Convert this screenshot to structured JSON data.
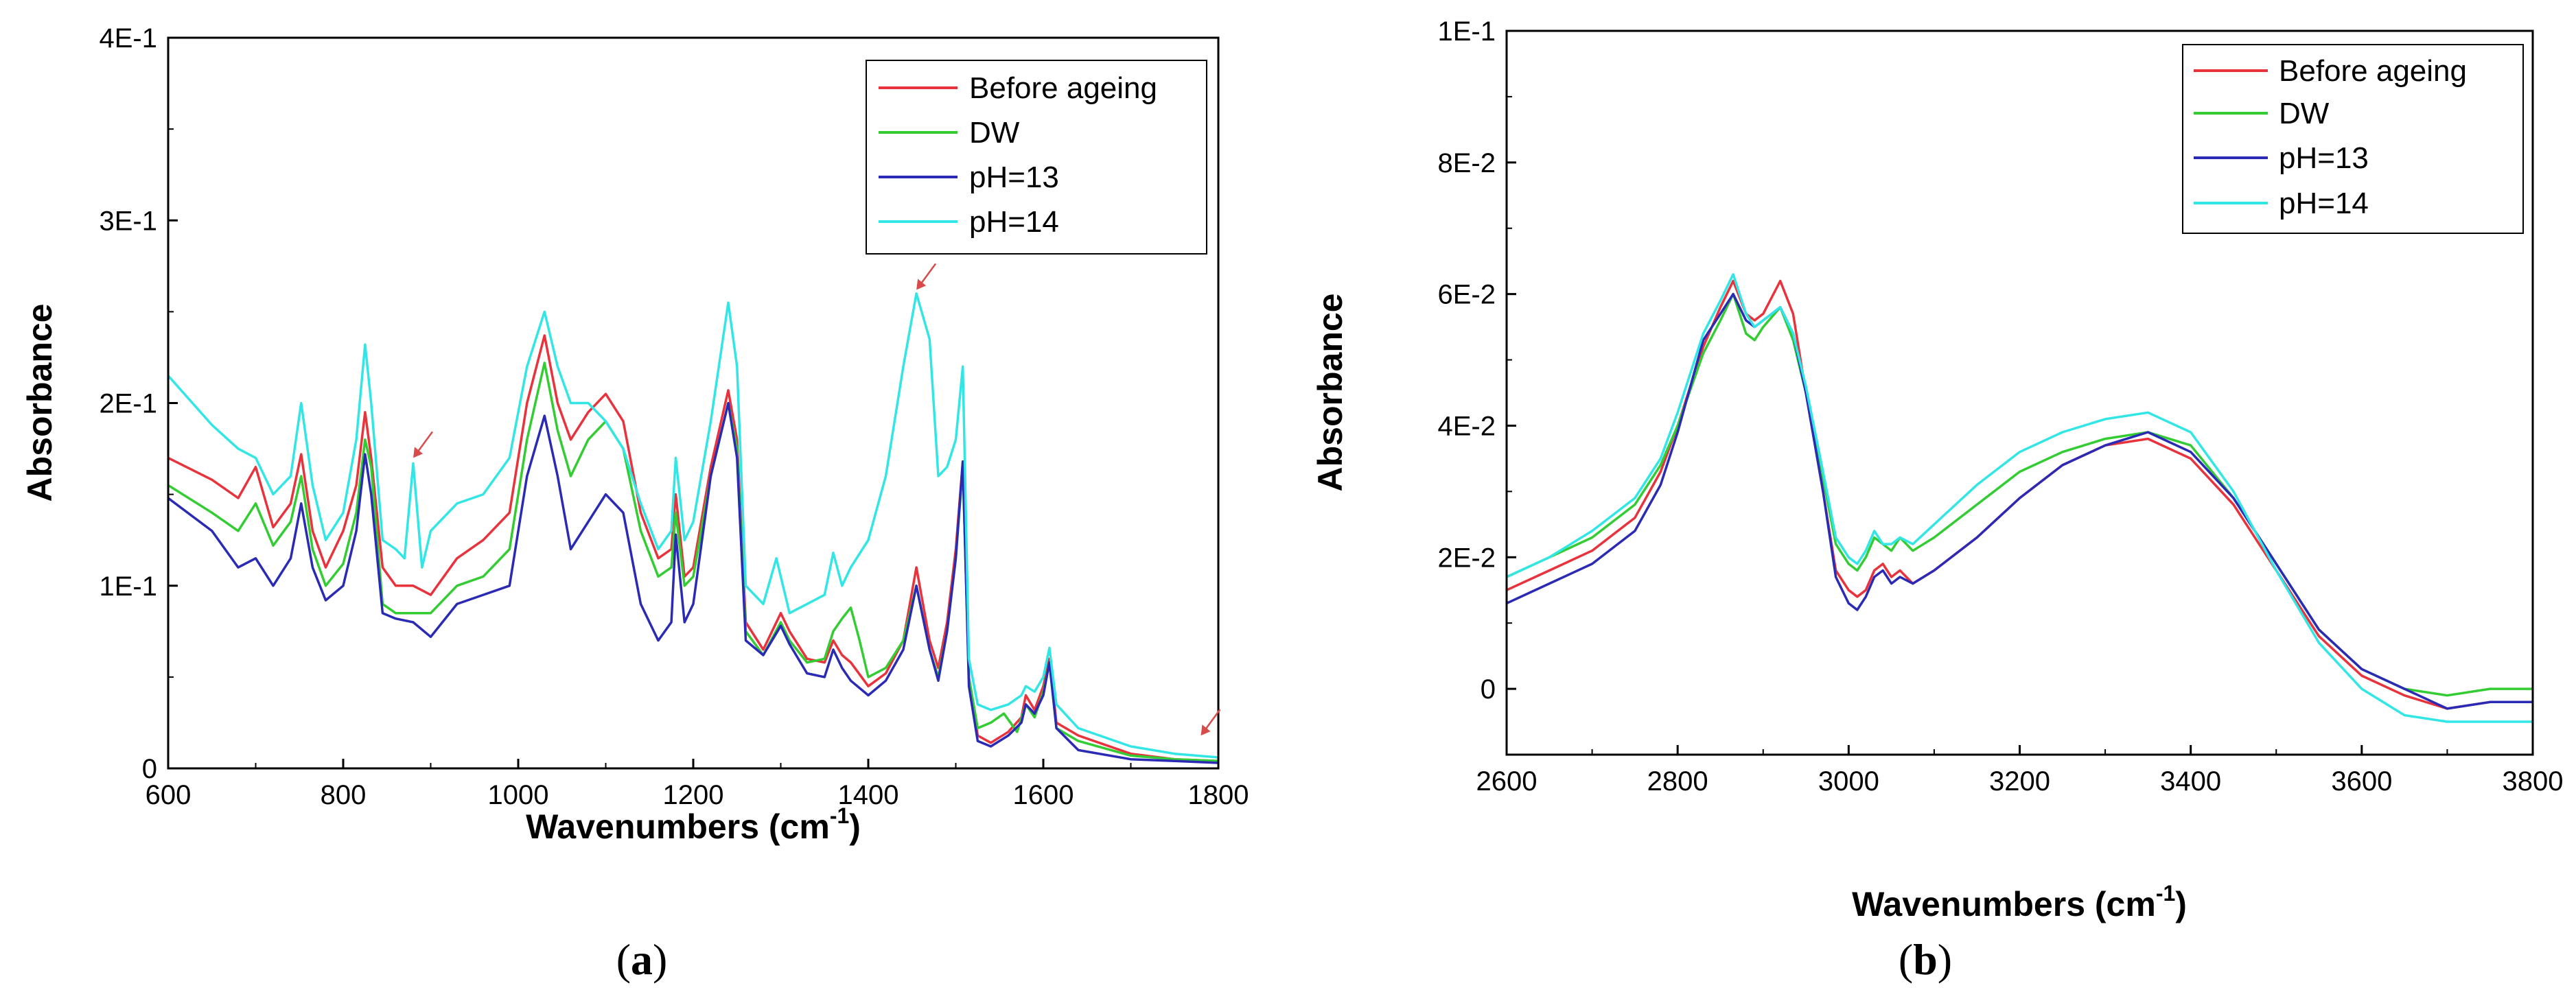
{
  "chart_data": [
    {
      "type": "line",
      "panel_label": "a",
      "xlabel": "Wavenumbers (cm",
      "xlabel_sup": "-1",
      "xlabel_close": ")",
      "ylabel": "Absorbance",
      "xlim": [
        600,
        1800
      ],
      "ylim": [
        0,
        0.4
      ],
      "x_ticks": [
        600,
        800,
        1000,
        1200,
        1400,
        1600,
        1800
      ],
      "y_ticks": [
        {
          "value": 0,
          "label": "0"
        },
        {
          "value": 0.1,
          "label": "1E-1"
        },
        {
          "value": 0.2,
          "label": "2E-1"
        },
        {
          "value": 0.3,
          "label": "3E-1"
        },
        {
          "value": 0.4,
          "label": "4E-1"
        }
      ],
      "legend_position": "top-right",
      "annotations": [
        {
          "type": "arrow",
          "x": 880,
          "y": 0.17,
          "color": "#d94a4a"
        },
        {
          "type": "arrow",
          "x": 1455,
          "y": 0.262,
          "color": "#d94a4a"
        },
        {
          "type": "arrow",
          "x": 1780,
          "y": 0.018,
          "color": "#d94a4a"
        }
      ],
      "series": [
        {
          "name": "Before ageing",
          "color": "#e8323c",
          "x": [
            600,
            650,
            680,
            700,
            720,
            740,
            752,
            765,
            780,
            800,
            815,
            825,
            832,
            845,
            860,
            880,
            900,
            930,
            960,
            990,
            1010,
            1030,
            1045,
            1060,
            1080,
            1100,
            1120,
            1140,
            1160,
            1175,
            1180,
            1190,
            1200,
            1220,
            1240,
            1250,
            1260,
            1280,
            1300,
            1310,
            1330,
            1350,
            1360,
            1370,
            1380,
            1400,
            1420,
            1440,
            1455,
            1470,
            1480,
            1490,
            1500,
            1508,
            1515,
            1525,
            1540,
            1560,
            1575,
            1580,
            1590,
            1600,
            1607,
            1615,
            1640,
            1700,
            1750,
            1800
          ],
          "y": [
            0.17,
            0.158,
            0.148,
            0.165,
            0.132,
            0.145,
            0.172,
            0.13,
            0.11,
            0.13,
            0.155,
            0.195,
            0.17,
            0.11,
            0.1,
            0.1,
            0.095,
            0.115,
            0.125,
            0.14,
            0.2,
            0.237,
            0.2,
            0.18,
            0.195,
            0.205,
            0.19,
            0.14,
            0.115,
            0.12,
            0.15,
            0.105,
            0.11,
            0.165,
            0.207,
            0.18,
            0.08,
            0.065,
            0.085,
            0.075,
            0.06,
            0.058,
            0.07,
            0.062,
            0.058,
            0.045,
            0.052,
            0.07,
            0.11,
            0.07,
            0.055,
            0.08,
            0.12,
            0.168,
            0.05,
            0.018,
            0.014,
            0.02,
            0.028,
            0.04,
            0.032,
            0.045,
            0.06,
            0.025,
            0.018,
            0.008,
            0.005,
            0.004
          ]
        },
        {
          "name": "DW",
          "color": "#33cc33",
          "x": [
            600,
            650,
            680,
            700,
            720,
            740,
            752,
            765,
            780,
            800,
            815,
            825,
            832,
            845,
            860,
            880,
            900,
            930,
            960,
            990,
            1010,
            1030,
            1045,
            1060,
            1080,
            1100,
            1120,
            1140,
            1160,
            1175,
            1180,
            1190,
            1200,
            1220,
            1240,
            1250,
            1260,
            1280,
            1300,
            1310,
            1330,
            1350,
            1360,
            1370,
            1380,
            1390,
            1400,
            1420,
            1440,
            1455,
            1470,
            1480,
            1490,
            1500,
            1508,
            1515,
            1525,
            1540,
            1555,
            1570,
            1580,
            1590,
            1600,
            1607,
            1615,
            1640,
            1700,
            1750,
            1800
          ],
          "y": [
            0.155,
            0.14,
            0.13,
            0.145,
            0.122,
            0.135,
            0.16,
            0.12,
            0.1,
            0.112,
            0.14,
            0.18,
            0.165,
            0.09,
            0.085,
            0.085,
            0.085,
            0.1,
            0.105,
            0.12,
            0.18,
            0.222,
            0.185,
            0.16,
            0.18,
            0.19,
            0.175,
            0.13,
            0.105,
            0.11,
            0.14,
            0.1,
            0.105,
            0.16,
            0.2,
            0.175,
            0.075,
            0.062,
            0.08,
            0.07,
            0.058,
            0.06,
            0.075,
            0.082,
            0.088,
            0.07,
            0.05,
            0.055,
            0.07,
            0.1,
            0.065,
            0.05,
            0.075,
            0.115,
            0.165,
            0.05,
            0.022,
            0.025,
            0.03,
            0.02,
            0.035,
            0.028,
            0.042,
            0.058,
            0.022,
            0.015,
            0.007,
            0.005,
            0.004
          ]
        },
        {
          "name": "pH=13",
          "color": "#2a2ab5",
          "x": [
            600,
            650,
            680,
            700,
            720,
            740,
            752,
            765,
            780,
            800,
            815,
            825,
            832,
            845,
            860,
            880,
            900,
            930,
            960,
            990,
            1010,
            1030,
            1045,
            1060,
            1080,
            1100,
            1120,
            1140,
            1160,
            1175,
            1180,
            1190,
            1200,
            1220,
            1240,
            1250,
            1260,
            1280,
            1300,
            1310,
            1330,
            1350,
            1360,
            1370,
            1380,
            1400,
            1420,
            1440,
            1455,
            1470,
            1480,
            1490,
            1500,
            1508,
            1515,
            1525,
            1540,
            1560,
            1575,
            1580,
            1590,
            1600,
            1607,
            1615,
            1640,
            1700,
            1750,
            1800
          ],
          "y": [
            0.148,
            0.13,
            0.11,
            0.115,
            0.1,
            0.115,
            0.145,
            0.11,
            0.092,
            0.1,
            0.13,
            0.172,
            0.15,
            0.085,
            0.082,
            0.08,
            0.072,
            0.09,
            0.095,
            0.1,
            0.16,
            0.193,
            0.16,
            0.12,
            0.135,
            0.15,
            0.14,
            0.09,
            0.07,
            0.08,
            0.128,
            0.08,
            0.09,
            0.16,
            0.2,
            0.17,
            0.07,
            0.062,
            0.078,
            0.068,
            0.052,
            0.05,
            0.065,
            0.055,
            0.048,
            0.04,
            0.048,
            0.065,
            0.1,
            0.065,
            0.048,
            0.075,
            0.115,
            0.168,
            0.045,
            0.015,
            0.012,
            0.018,
            0.025,
            0.035,
            0.03,
            0.04,
            0.058,
            0.022,
            0.01,
            0.005,
            0.004,
            0.003
          ]
        },
        {
          "name": "pH=14",
          "color": "#33e6e6",
          "x": [
            600,
            650,
            680,
            700,
            720,
            740,
            752,
            765,
            780,
            800,
            815,
            825,
            832,
            845,
            860,
            870,
            880,
            890,
            900,
            930,
            960,
            990,
            1010,
            1030,
            1045,
            1060,
            1080,
            1100,
            1120,
            1140,
            1160,
            1175,
            1180,
            1190,
            1200,
            1220,
            1240,
            1250,
            1260,
            1280,
            1295,
            1310,
            1330,
            1350,
            1360,
            1370,
            1380,
            1400,
            1420,
            1440,
            1455,
            1470,
            1480,
            1490,
            1500,
            1508,
            1515,
            1525,
            1540,
            1560,
            1575,
            1580,
            1590,
            1600,
            1607,
            1615,
            1640,
            1700,
            1750,
            1800
          ],
          "y": [
            0.215,
            0.188,
            0.175,
            0.17,
            0.15,
            0.16,
            0.2,
            0.155,
            0.125,
            0.14,
            0.18,
            0.232,
            0.2,
            0.125,
            0.12,
            0.115,
            0.167,
            0.11,
            0.13,
            0.145,
            0.15,
            0.17,
            0.22,
            0.25,
            0.22,
            0.2,
            0.2,
            0.19,
            0.175,
            0.145,
            0.12,
            0.13,
            0.17,
            0.125,
            0.135,
            0.19,
            0.255,
            0.22,
            0.1,
            0.09,
            0.115,
            0.085,
            0.09,
            0.095,
            0.118,
            0.1,
            0.11,
            0.125,
            0.16,
            0.22,
            0.26,
            0.235,
            0.16,
            0.165,
            0.18,
            0.22,
            0.06,
            0.035,
            0.032,
            0.035,
            0.04,
            0.045,
            0.042,
            0.05,
            0.066,
            0.035,
            0.022,
            0.012,
            0.008,
            0.006
          ]
        }
      ]
    },
    {
      "type": "line",
      "panel_label": "b",
      "xlabel": "Wavenumbers (cm",
      "xlabel_sup": "-1",
      "xlabel_close": ")",
      "ylabel": "Absorbance",
      "xlim": [
        2600,
        3800
      ],
      "ylim": [
        -0.01,
        0.1
      ],
      "x_ticks": [
        2600,
        2800,
        3000,
        3200,
        3400,
        3600,
        3800
      ],
      "y_ticks": [
        {
          "value": 0,
          "label": "0"
        },
        {
          "value": 0.02,
          "label": "2E-2"
        },
        {
          "value": 0.04,
          "label": "4E-2"
        },
        {
          "value": 0.06,
          "label": "6E-2"
        },
        {
          "value": 0.08,
          "label": "8E-2"
        },
        {
          "value": 0.1,
          "label": "1E-1"
        }
      ],
      "legend_position": "top-right",
      "series": [
        {
          "name": "Before ageing",
          "color": "#e8323c",
          "x": [
            2600,
            2650,
            2700,
            2750,
            2780,
            2800,
            2830,
            2850,
            2865,
            2880,
            2890,
            2900,
            2920,
            2935,
            2950,
            2970,
            2985,
            3000,
            3010,
            3020,
            3030,
            3040,
            3050,
            3060,
            3075,
            3100,
            3150,
            3200,
            3250,
            3300,
            3350,
            3400,
            3450,
            3500,
            3550,
            3600,
            3650,
            3700,
            3750,
            3800
          ],
          "y": [
            0.015,
            0.018,
            0.021,
            0.026,
            0.033,
            0.04,
            0.052,
            0.058,
            0.062,
            0.057,
            0.056,
            0.057,
            0.062,
            0.057,
            0.045,
            0.03,
            0.018,
            0.015,
            0.014,
            0.015,
            0.018,
            0.019,
            0.017,
            0.018,
            0.016,
            0.018,
            0.023,
            0.029,
            0.034,
            0.037,
            0.038,
            0.035,
            0.028,
            0.018,
            0.008,
            0.002,
            -0.001,
            -0.003,
            -0.002,
            -0.002
          ]
        },
        {
          "name": "DW",
          "color": "#33cc33",
          "x": [
            2600,
            2650,
            2700,
            2750,
            2780,
            2800,
            2830,
            2850,
            2865,
            2880,
            2890,
            2900,
            2920,
            2935,
            2950,
            2970,
            2985,
            3000,
            3010,
            3020,
            3030,
            3040,
            3050,
            3060,
            3075,
            3100,
            3150,
            3200,
            3250,
            3300,
            3350,
            3400,
            3450,
            3500,
            3550,
            3600,
            3650,
            3700,
            3750,
            3800
          ],
          "y": [
            0.017,
            0.02,
            0.023,
            0.028,
            0.034,
            0.04,
            0.051,
            0.056,
            0.06,
            0.054,
            0.053,
            0.055,
            0.058,
            0.053,
            0.045,
            0.032,
            0.022,
            0.019,
            0.018,
            0.02,
            0.023,
            0.022,
            0.021,
            0.023,
            0.021,
            0.023,
            0.028,
            0.033,
            0.036,
            0.038,
            0.039,
            0.037,
            0.029,
            0.019,
            0.009,
            0.003,
            0.0,
            -0.001,
            0.0,
            0.0
          ]
        },
        {
          "name": "pH=13",
          "color": "#2a2ab5",
          "x": [
            2600,
            2650,
            2700,
            2750,
            2780,
            2800,
            2830,
            2850,
            2865,
            2880,
            2890,
            2900,
            2920,
            2935,
            2950,
            2970,
            2985,
            3000,
            3010,
            3020,
            3030,
            3040,
            3050,
            3060,
            3075,
            3100,
            3150,
            3200,
            3250,
            3300,
            3350,
            3400,
            3450,
            3500,
            3550,
            3600,
            3650,
            3700,
            3750,
            3800
          ],
          "y": [
            0.013,
            0.016,
            0.019,
            0.024,
            0.031,
            0.039,
            0.053,
            0.057,
            0.06,
            0.056,
            0.055,
            0.056,
            0.058,
            0.054,
            0.045,
            0.03,
            0.017,
            0.013,
            0.012,
            0.014,
            0.017,
            0.018,
            0.016,
            0.017,
            0.016,
            0.018,
            0.023,
            0.029,
            0.034,
            0.037,
            0.039,
            0.036,
            0.029,
            0.019,
            0.009,
            0.003,
            0.0,
            -0.003,
            -0.002,
            -0.002
          ]
        },
        {
          "name": "pH=14",
          "color": "#33e6e6",
          "x": [
            2600,
            2650,
            2700,
            2750,
            2780,
            2800,
            2830,
            2850,
            2865,
            2880,
            2890,
            2900,
            2920,
            2935,
            2950,
            2970,
            2985,
            3000,
            3010,
            3020,
            3030,
            3040,
            3050,
            3060,
            3075,
            3100,
            3150,
            3200,
            3250,
            3300,
            3350,
            3400,
            3450,
            3500,
            3550,
            3600,
            3650,
            3700,
            3750,
            3800
          ],
          "y": [
            0.017,
            0.02,
            0.024,
            0.029,
            0.035,
            0.042,
            0.054,
            0.059,
            0.063,
            0.057,
            0.055,
            0.056,
            0.058,
            0.054,
            0.046,
            0.033,
            0.023,
            0.02,
            0.019,
            0.021,
            0.024,
            0.022,
            0.022,
            0.023,
            0.022,
            0.025,
            0.031,
            0.036,
            0.039,
            0.041,
            0.042,
            0.039,
            0.03,
            0.018,
            0.007,
            0.0,
            -0.004,
            -0.005,
            -0.005,
            -0.005
          ]
        }
      ]
    }
  ]
}
